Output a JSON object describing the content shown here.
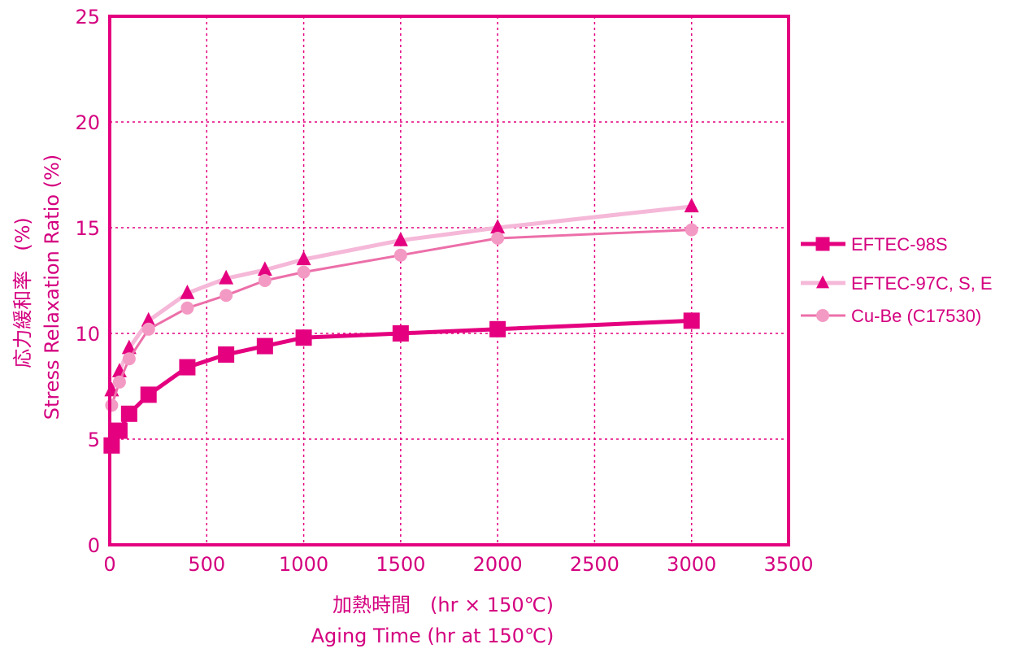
{
  "chart_data": {
    "type": "line",
    "xlabel_jp": "加熱時間　(hr × 150℃)",
    "xlabel_en": "Aging Time (hr at 150℃)",
    "ylabel_jp": "応力緩和率　(%)",
    "ylabel_en": "Stress Relaxation Ratio (%)",
    "xlim": [
      0,
      3500
    ],
    "ylim": [
      0,
      25
    ],
    "x_ticks": [
      "0",
      "500",
      "1000",
      "1500",
      "2000",
      "2500",
      "3000",
      "3500"
    ],
    "y_ticks": [
      "0",
      "5",
      "10",
      "15",
      "20",
      "25"
    ],
    "grid": true,
    "legend_position": "right",
    "series": [
      {
        "name": "EFTEC-98S",
        "marker": "square",
        "color": "#e4007f",
        "x": [
          10,
          50,
          100,
          200,
          400,
          600,
          800,
          1000,
          1500,
          2000,
          3000
        ],
        "y": [
          4.7,
          5.4,
          6.2,
          7.1,
          8.4,
          9.0,
          9.4,
          9.8,
          10.0,
          10.2,
          10.6
        ]
      },
      {
        "name": "EFTEC-97C, S, E",
        "marker": "triangle",
        "color": "#f5b8d8",
        "markerColor": "#e4007f",
        "x": [
          10,
          50,
          100,
          200,
          400,
          600,
          800,
          1000,
          1500,
          2000,
          3000
        ],
        "y": [
          7.3,
          8.2,
          9.3,
          10.6,
          11.9,
          12.6,
          13.0,
          13.5,
          14.4,
          15.0,
          16.0
        ]
      },
      {
        "name": "Cu-Be (C17530)",
        "marker": "circle",
        "color": "#ec6fa9",
        "markerColor": "#f39ac4",
        "x": [
          10,
          50,
          100,
          200,
          400,
          600,
          800,
          1000,
          1500,
          2000,
          3000
        ],
        "y": [
          6.6,
          7.7,
          8.8,
          10.2,
          11.2,
          11.8,
          12.5,
          12.9,
          13.7,
          14.5,
          14.9
        ]
      }
    ]
  }
}
